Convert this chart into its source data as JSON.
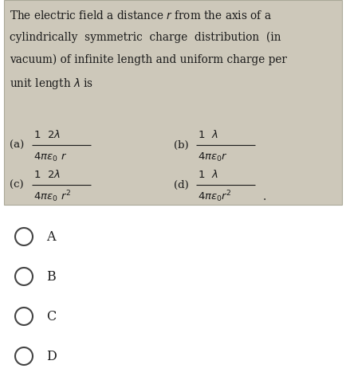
{
  "box_bg": "#cdc8ba",
  "page_bg": "#ffffff",
  "text_color": "#1a1a1a",
  "lines": [
    "The electric field a distance $r$ from the axis of a",
    "cylindrically  symmetric  charge  distribution  (in",
    "vacuum) of infinite length and uniform charge per",
    "unit length $\\lambda$ is"
  ],
  "choices": [
    "A",
    "B",
    "C",
    "D"
  ],
  "fig_width": 4.34,
  "fig_height": 4.92,
  "dpi": 100
}
